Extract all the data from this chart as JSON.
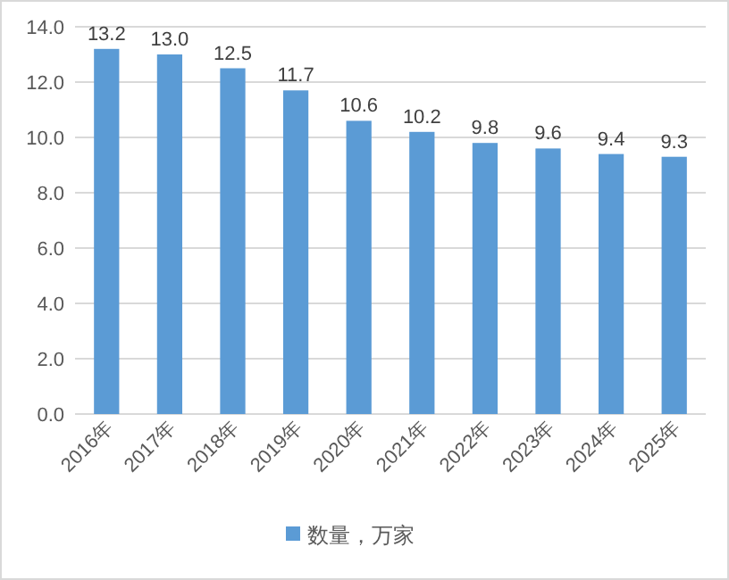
{
  "chart_data": {
    "type": "bar",
    "categories": [
      "2016年",
      "2017年",
      "2018年",
      "2019年",
      "2020年",
      "2021年",
      "2022年",
      "2023年",
      "2024年",
      "2025年"
    ],
    "series": [
      {
        "name": "数量，万家",
        "color": "#5b9bd5",
        "values": [
          13.2,
          13.0,
          12.5,
          11.7,
          10.6,
          10.2,
          9.8,
          9.6,
          9.4,
          9.3
        ],
        "value_labels": [
          "13.2",
          "13.0",
          "12.5",
          "11.7",
          "10.6",
          "10.2",
          "9.8",
          "9.6",
          "9.4",
          "9.3"
        ]
      }
    ],
    "ylim": [
      0,
      14
    ],
    "yticks": [
      {
        "value": 0,
        "label": "0.0"
      },
      {
        "value": 2,
        "label": "2.0"
      },
      {
        "value": 4,
        "label": "4.0"
      },
      {
        "value": 6,
        "label": "6.0"
      },
      {
        "value": 8,
        "label": "8.0"
      },
      {
        "value": 10,
        "label": "10.0"
      },
      {
        "value": 12,
        "label": "12.0"
      },
      {
        "value": 14,
        "label": "14.0"
      }
    ],
    "grid": "y",
    "legend": "bottom"
  }
}
